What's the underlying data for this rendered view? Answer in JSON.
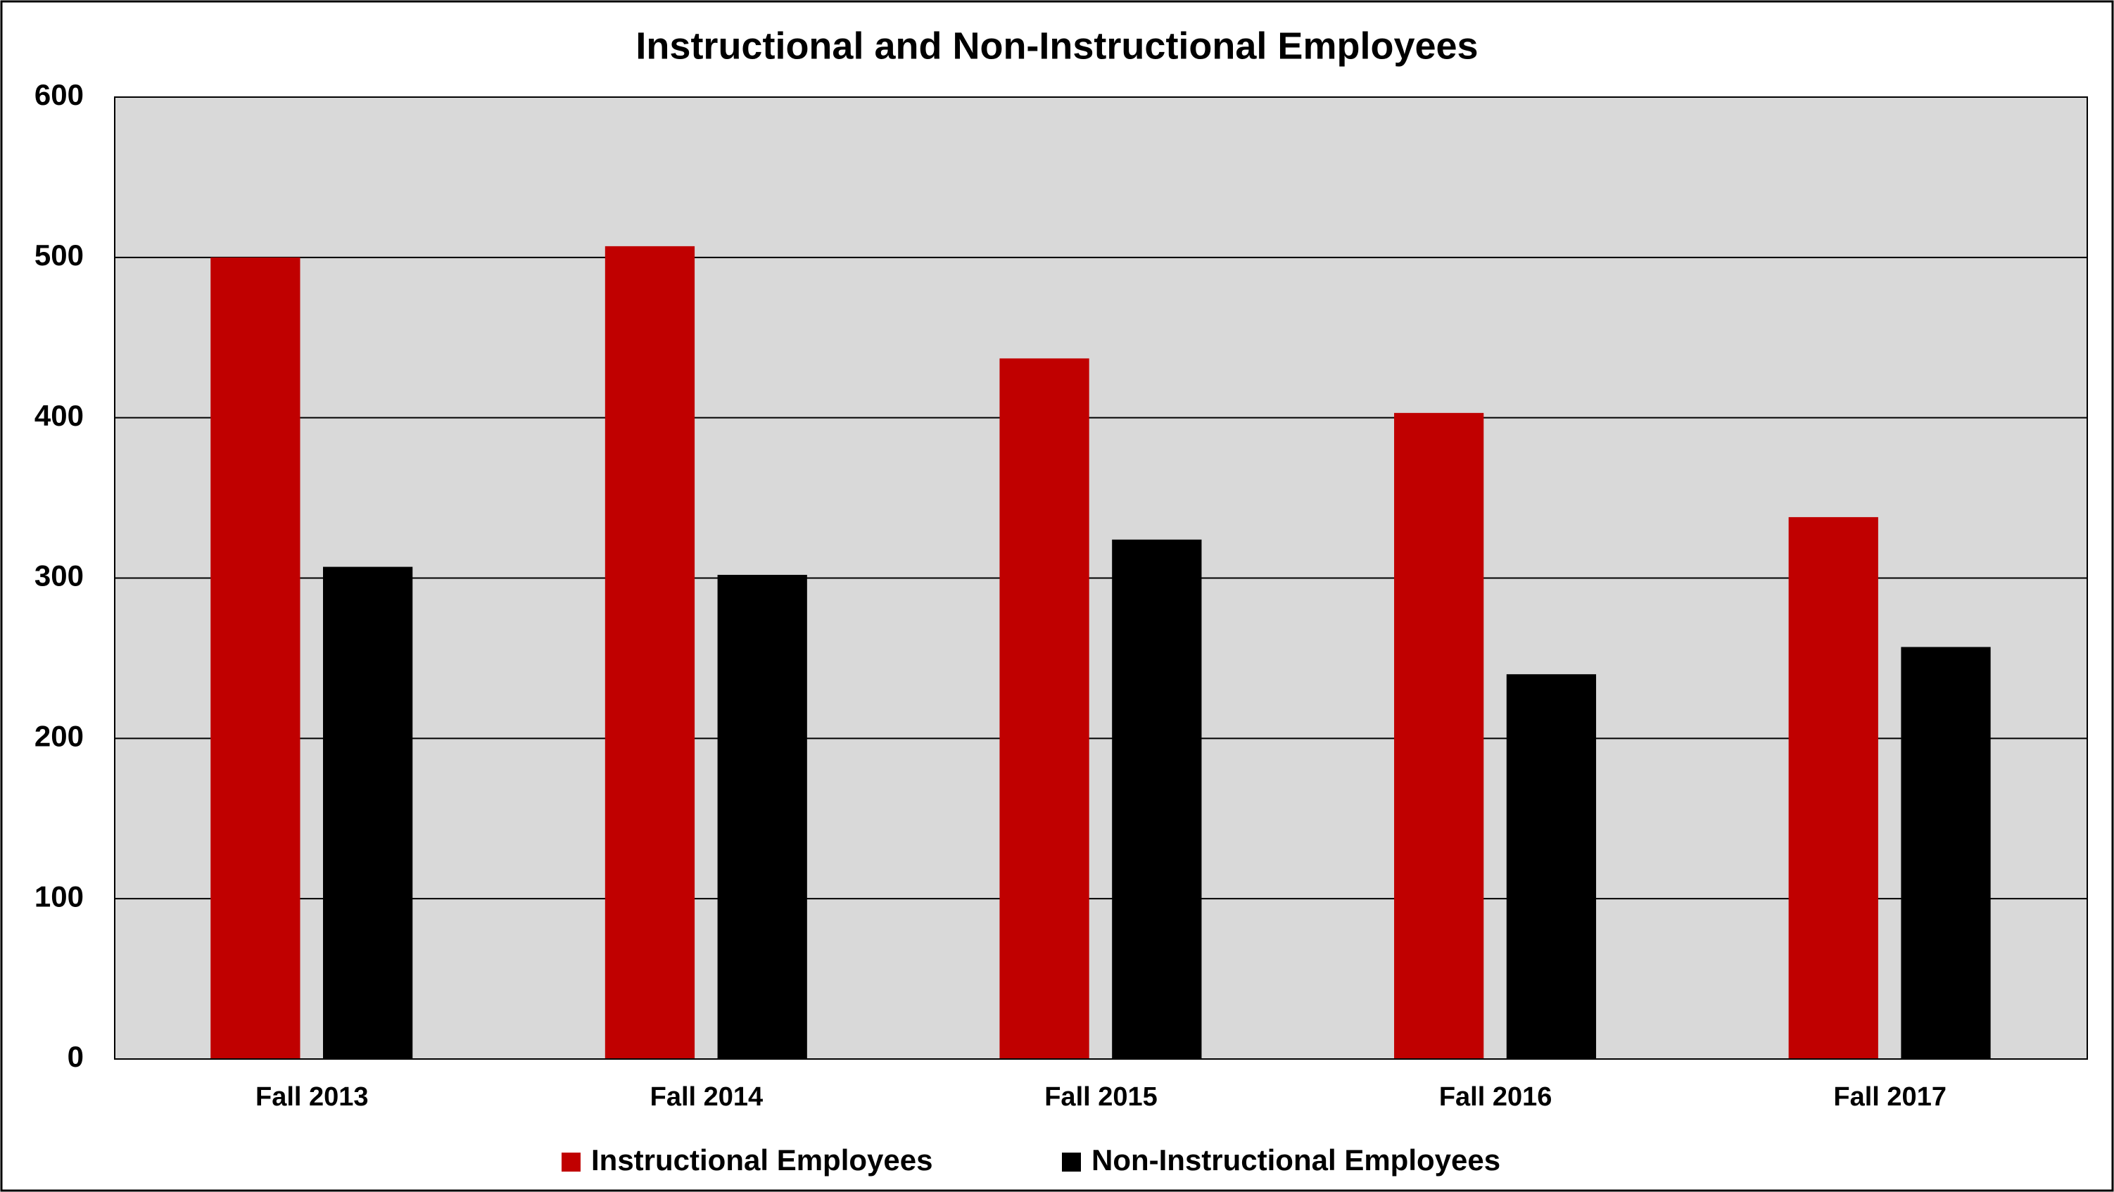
{
  "chart_data": {
    "type": "bar",
    "title": "Instructional and Non-Instructional Employees",
    "categories": [
      "Fall 2013",
      "Fall 2014",
      "Fall 2015",
      "Fall 2016",
      "Fall 2017"
    ],
    "series": [
      {
        "name": "Instructional Employees",
        "color": "#c00000",
        "values": [
          500,
          507,
          437,
          403,
          338
        ]
      },
      {
        "name": "Non-Instructional Employees",
        "color": "#000000",
        "values": [
          307,
          302,
          324,
          240,
          257
        ]
      }
    ],
    "ylim": [
      0,
      600
    ],
    "yticks": [
      0,
      100,
      200,
      300,
      400,
      500,
      600
    ],
    "grid": true,
    "legend": "bottom"
  }
}
